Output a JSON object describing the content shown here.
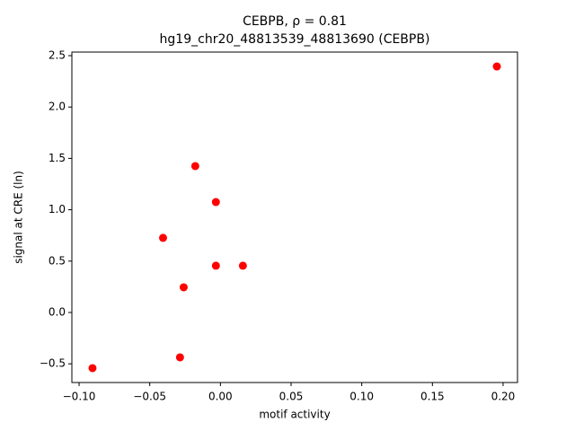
{
  "chart_data": {
    "type": "scatter",
    "title": "CEBPB, ρ = 0.81",
    "subtitle": "hg19_chr20_48813539_48813690 (CEBPB)",
    "xlabel": "motif activity",
    "ylabel": "signal at CRE (ln)",
    "color": "#ff0000",
    "x": [
      -0.0905,
      -0.0286,
      -0.026,
      -0.0406,
      -0.0178,
      -0.0032,
      -0.0032,
      0.0159,
      0.1956
    ],
    "values": [
      -0.542,
      -0.437,
      0.245,
      0.726,
      1.425,
      1.075,
      0.455,
      0.455,
      2.395
    ],
    "xlim": [
      -0.1051,
      0.2102
    ],
    "ylim": [
      -0.682,
      2.535
    ],
    "xticks": [
      {
        "value": -0.1,
        "label": "−0.10"
      },
      {
        "value": -0.05,
        "label": "−0.05"
      },
      {
        "value": 0,
        "label": "0.00"
      },
      {
        "value": 0.05,
        "label": "0.05"
      },
      {
        "value": 0.1,
        "label": "0.10"
      },
      {
        "value": 0.15,
        "label": "0.15"
      },
      {
        "value": 0.2,
        "label": "0.20"
      }
    ],
    "yticks": [
      {
        "value": -0.5,
        "label": "−0.5"
      },
      {
        "value": 0,
        "label": "0.0"
      },
      {
        "value": 0.5,
        "label": "0.5"
      },
      {
        "value": 1,
        "label": "1.0"
      },
      {
        "value": 1.5,
        "label": "1.5"
      },
      {
        "value": 2,
        "label": "2.0"
      },
      {
        "value": 2.5,
        "label": "2.5"
      }
    ]
  }
}
